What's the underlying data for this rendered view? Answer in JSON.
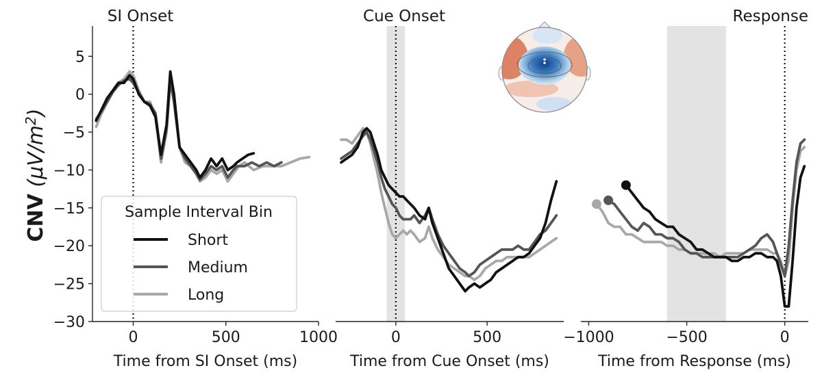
{
  "chart_data": [
    {
      "type": "line",
      "title": "SI Onset",
      "xlabel": "Time from SI Onset (ms)",
      "ylabel": "CNV (μV/m²)",
      "xlim": [
        -220,
        1000
      ],
      "ylim": [
        -30,
        9
      ],
      "xticks": [
        0,
        500,
        1000
      ],
      "xtick_labels": [
        "0",
        "500",
        "1000"
      ],
      "yticks": [
        5,
        0,
        -5,
        -10,
        -15,
        -20,
        -25,
        -30
      ],
      "ytick_labels": [
        "5",
        "0",
        "−5",
        "−10",
        "−15",
        "−20",
        "−25",
        "−30"
      ],
      "vline": 0,
      "legend": {
        "title": "Sample Interval Bin",
        "placement": "lower-left",
        "entries": [
          "Short",
          "Medium",
          "Long"
        ]
      },
      "series": [
        {
          "name": "Short",
          "color": "#111111",
          "x": [
            -200,
            -170,
            -140,
            -110,
            -80,
            -50,
            -20,
            0,
            30,
            60,
            90,
            120,
            150,
            180,
            200,
            220,
            250,
            280,
            310,
            340,
            360,
            390,
            420,
            450,
            480,
            510,
            540,
            560,
            590,
            620,
            650
          ],
          "y": [
            -3.5,
            -2,
            -0.5,
            0.5,
            1.5,
            1.5,
            2.5,
            2,
            0,
            -1,
            -1.5,
            -3,
            -8,
            -4,
            3,
            0,
            -7,
            -8,
            -9,
            -10,
            -11,
            -10,
            -8.5,
            -9.5,
            -8.5,
            -10,
            -9.5,
            -9,
            -8.5,
            -8,
            -7.8
          ]
        },
        {
          "name": "Medium",
          "color": "#555555",
          "x": [
            -200,
            -170,
            -140,
            -110,
            -80,
            -50,
            -20,
            0,
            30,
            60,
            90,
            120,
            150,
            180,
            200,
            220,
            250,
            280,
            310,
            340,
            360,
            390,
            420,
            450,
            480,
            510,
            540,
            560,
            600,
            640,
            680,
            720,
            760,
            800
          ],
          "y": [
            -3.3,
            -2.2,
            -1,
            0.3,
            1.2,
            1.8,
            2,
            1.5,
            0.2,
            -1,
            -1.3,
            -2.5,
            -8.5,
            -4.5,
            1.8,
            -1,
            -7,
            -8.5,
            -9.5,
            -10.5,
            -11.3,
            -10.5,
            -9.5,
            -10,
            -9.5,
            -11,
            -10,
            -9.5,
            -9.5,
            -9,
            -9.5,
            -9,
            -9.5,
            -9
          ]
        },
        {
          "name": "Long",
          "color": "#a8a8a8",
          "x": [
            -200,
            -170,
            -140,
            -110,
            -80,
            -50,
            -20,
            0,
            30,
            60,
            90,
            120,
            150,
            180,
            200,
            220,
            250,
            280,
            310,
            340,
            360,
            390,
            420,
            450,
            480,
            510,
            540,
            570,
            600,
            650,
            700,
            750,
            800,
            850,
            900,
            950
          ],
          "y": [
            -4.3,
            -2.5,
            -1,
            0.5,
            1.5,
            2,
            3,
            2.5,
            0.5,
            -1,
            -1,
            -3,
            -9,
            -5,
            2,
            -1,
            -7,
            -9,
            -9.5,
            -10.5,
            -11.5,
            -11,
            -10,
            -10.5,
            -10,
            -11.5,
            -10.5,
            -9.5,
            -9,
            -10,
            -9.5,
            -9.5,
            -9.5,
            -9,
            -8.5,
            -8.3
          ]
        }
      ]
    },
    {
      "type": "line",
      "title": "Cue Onset",
      "xlabel": "Time from Cue Onset (ms)",
      "xlim": [
        -330,
        920
      ],
      "ylim": [
        -30,
        9
      ],
      "xticks": [
        0,
        500
      ],
      "xtick_labels": [
        "0",
        "500"
      ],
      "vline": 0,
      "shaded_region": [
        -50,
        50
      ],
      "inset": "scalp topography map",
      "series": [
        {
          "name": "Short",
          "color": "#111111",
          "x": [
            -300,
            -270,
            -240,
            -210,
            -180,
            -160,
            -140,
            -120,
            -100,
            -80,
            -60,
            -40,
            -20,
            0,
            20,
            40,
            60,
            80,
            100,
            130,
            160,
            180,
            200,
            230,
            260,
            290,
            320,
            350,
            380,
            400,
            430,
            460,
            490,
            520,
            550,
            580,
            610,
            640,
            670,
            700,
            730,
            760,
            790,
            820,
            850,
            880
          ],
          "y": [
            -9,
            -8.5,
            -8,
            -7,
            -5,
            -4.5,
            -5,
            -6.5,
            -8,
            -10,
            -11,
            -12,
            -12.5,
            -13,
            -13.5,
            -13.5,
            -14,
            -14.5,
            -15,
            -16,
            -16.5,
            -15,
            -17,
            -19,
            -21,
            -23,
            -24,
            -25,
            -26,
            -25.5,
            -25,
            -25.5,
            -25,
            -24.5,
            -23.5,
            -23,
            -22.5,
            -22,
            -21.5,
            -21.5,
            -21,
            -20,
            -19,
            -17,
            -14,
            -11.5
          ]
        },
        {
          "name": "Medium",
          "color": "#555555",
          "x": [
            -300,
            -270,
            -240,
            -210,
            -180,
            -160,
            -140,
            -120,
            -100,
            -80,
            -60,
            -40,
            -20,
            0,
            20,
            40,
            60,
            80,
            100,
            130,
            160,
            180,
            200,
            230,
            260,
            290,
            320,
            350,
            380,
            400,
            430,
            460,
            490,
            520,
            550,
            580,
            610,
            640,
            670,
            700,
            730,
            760,
            790,
            820,
            850,
            880
          ],
          "y": [
            -8.5,
            -8,
            -7.5,
            -6.5,
            -5.5,
            -5,
            -6,
            -7.5,
            -9,
            -11,
            -12.5,
            -13.5,
            -14.5,
            -15,
            -16,
            -16.5,
            -16.5,
            -16.5,
            -16,
            -17,
            -16,
            -15,
            -16.5,
            -18.5,
            -20,
            -21,
            -22,
            -23,
            -23.5,
            -24,
            -23.5,
            -22.5,
            -22,
            -21.5,
            -21,
            -20.5,
            -20.5,
            -20.5,
            -20,
            -20.5,
            -20.5,
            -19.5,
            -18.5,
            -18,
            -17,
            -16
          ]
        },
        {
          "name": "Long",
          "color": "#a8a8a8",
          "x": [
            -300,
            -270,
            -240,
            -210,
            -180,
            -160,
            -140,
            -120,
            -100,
            -80,
            -60,
            -40,
            -20,
            0,
            20,
            40,
            60,
            80,
            100,
            130,
            160,
            180,
            200,
            230,
            260,
            290,
            320,
            350,
            380,
            400,
            430,
            460,
            490,
            520,
            550,
            580,
            610,
            640,
            670,
            700,
            730,
            760,
            790,
            820,
            850,
            880
          ],
          "y": [
            -6,
            -6,
            -6.5,
            -5.5,
            -4.5,
            -5,
            -6.5,
            -8.5,
            -10.5,
            -13,
            -15,
            -17,
            -18.5,
            -19,
            -18.5,
            -18,
            -18.5,
            -18,
            -18.5,
            -19.5,
            -19,
            -17.5,
            -19,
            -20.5,
            -21.5,
            -22.5,
            -23,
            -23.5,
            -24,
            -24,
            -24.5,
            -24,
            -23,
            -22.5,
            -22,
            -22,
            -21.5,
            -21.5,
            -21.5,
            -21.5,
            -21.5,
            -21,
            -20.5,
            -20,
            -19.5,
            -19
          ]
        }
      ]
    },
    {
      "type": "line",
      "title": "Response",
      "xlabel": "Time from Response (ms)",
      "xlim": [
        -1040,
        120
      ],
      "ylim": [
        -30,
        9
      ],
      "xticks": [
        -1000,
        -500,
        0
      ],
      "xtick_labels": [
        "−1000",
        "−500",
        "0"
      ],
      "vline": 0,
      "shaded_region": [
        -600,
        -300
      ],
      "series": [
        {
          "name": "Short",
          "color": "#111111",
          "x": [
            -810,
            -780,
            -750,
            -720,
            -690,
            -660,
            -630,
            -600,
            -570,
            -540,
            -510,
            -480,
            -450,
            -420,
            -390,
            -360,
            -330,
            -300,
            -270,
            -240,
            -210,
            -180,
            -150,
            -120,
            -90,
            -60,
            -40,
            -20,
            0,
            20,
            40,
            60,
            80,
            100
          ],
          "y": [
            -12,
            -13,
            -14,
            -15,
            -15.5,
            -16.5,
            -17,
            -17.5,
            -17.5,
            -18.5,
            -19,
            -19.5,
            -20.5,
            -20.5,
            -21,
            -21.5,
            -21.5,
            -21.5,
            -22,
            -22,
            -21.5,
            -21.5,
            -21,
            -21,
            -21.5,
            -21.5,
            -22,
            -24,
            -28,
            -28,
            -22,
            -15,
            -11,
            -9.5
          ]
        },
        {
          "name": "Medium",
          "color": "#555555",
          "x": [
            -900,
            -870,
            -840,
            -810,
            -780,
            -750,
            -720,
            -690,
            -660,
            -630,
            -600,
            -570,
            -540,
            -510,
            -480,
            -450,
            -420,
            -390,
            -360,
            -330,
            -300,
            -270,
            -240,
            -210,
            -180,
            -150,
            -120,
            -90,
            -60,
            -40,
            -20,
            0,
            20,
            40,
            60,
            80,
            100
          ],
          "y": [
            -14,
            -14.5,
            -15.5,
            -16.5,
            -17.5,
            -18,
            -17,
            -17.5,
            -18.5,
            -18.5,
            -19,
            -19,
            -19.5,
            -20.5,
            -21,
            -21,
            -21.5,
            -21.5,
            -21.5,
            -21.5,
            -21.5,
            -21.5,
            -21.5,
            -21,
            -20.5,
            -20,
            -19,
            -18.5,
            -19.5,
            -21,
            -22.5,
            -24,
            -20,
            -14,
            -9,
            -6.5,
            -6
          ]
        },
        {
          "name": "Long",
          "color": "#a8a8a8",
          "x": [
            -960,
            -930,
            -900,
            -870,
            -840,
            -810,
            -780,
            -750,
            -720,
            -690,
            -660,
            -630,
            -600,
            -570,
            -540,
            -510,
            -480,
            -450,
            -420,
            -390,
            -360,
            -330,
            -300,
            -270,
            -240,
            -210,
            -180,
            -150,
            -120,
            -90,
            -60,
            -40,
            -20,
            0,
            20,
            40,
            60,
            80,
            100
          ],
          "y": [
            -14.5,
            -15.5,
            -17,
            -17.5,
            -17.5,
            -18.5,
            -18.5,
            -19,
            -19.5,
            -19.5,
            -19.5,
            -19.5,
            -20,
            -20,
            -20.5,
            -20.5,
            -21,
            -21,
            -21,
            -21,
            -21,
            -21.5,
            -21,
            -21,
            -21,
            -21,
            -20.5,
            -20.5,
            -20.5,
            -20.5,
            -21,
            -21,
            -22,
            -24,
            -22,
            -15,
            -10,
            -7.5,
            -7
          ]
        }
      ]
    }
  ]
}
